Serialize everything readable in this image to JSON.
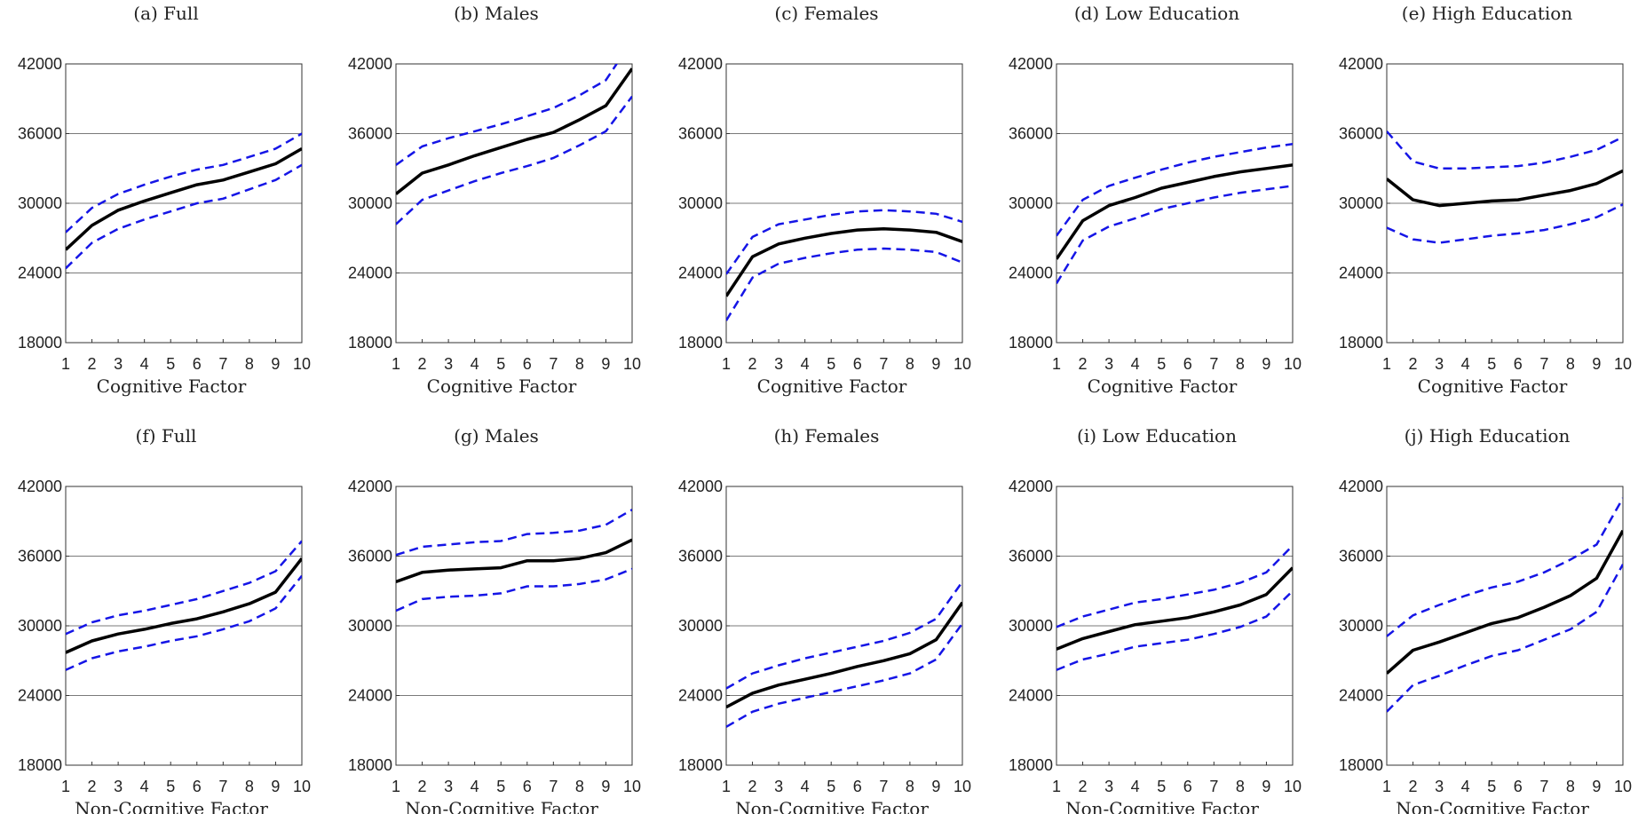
{
  "chart_data": [
    {
      "type": "line",
      "title": "(a) Full",
      "xlabel": "Cognitive Factor",
      "ylabel": "",
      "x": [
        1,
        2,
        3,
        4,
        5,
        6,
        7,
        8,
        9,
        10
      ],
      "xlim": [
        1,
        10
      ],
      "ylim": [
        18000,
        42000
      ],
      "yticks": [
        18000,
        24000,
        30000,
        36000,
        42000
      ],
      "grid": "horizontal",
      "series": [
        {
          "role": "estimate",
          "color": "#000000",
          "style": "solid",
          "values": [
            26000,
            28100,
            29400,
            30200,
            30900,
            31600,
            32000,
            32700,
            33400,
            34700
          ]
        },
        {
          "role": "upper",
          "color": "#1515e6",
          "style": "dashed",
          "values": [
            27500,
            29600,
            30800,
            31600,
            32300,
            32900,
            33300,
            34000,
            34700,
            36000
          ]
        },
        {
          "role": "lower",
          "color": "#1515e6",
          "style": "dashed",
          "values": [
            24400,
            26600,
            27800,
            28600,
            29300,
            30000,
            30400,
            31200,
            32000,
            33300
          ]
        }
      ]
    },
    {
      "type": "line",
      "title": "(b) Males",
      "xlabel": "Cognitive Factor",
      "ylabel": "",
      "x": [
        1,
        2,
        3,
        4,
        5,
        6,
        7,
        8,
        9,
        10
      ],
      "xlim": [
        1,
        10
      ],
      "ylim": [
        18000,
        42000
      ],
      "yticks": [
        18000,
        24000,
        30000,
        36000,
        42000
      ],
      "grid": "horizontal",
      "series": [
        {
          "role": "estimate",
          "color": "#000000",
          "style": "solid",
          "values": [
            30800,
            32600,
            33300,
            34100,
            34800,
            35500,
            36100,
            37200,
            38400,
            41600
          ]
        },
        {
          "role": "upper",
          "color": "#1515e6",
          "style": "dashed",
          "values": [
            33300,
            34900,
            35600,
            36200,
            36800,
            37500,
            38200,
            39300,
            40600,
            44000
          ]
        },
        {
          "role": "lower",
          "color": "#1515e6",
          "style": "dashed",
          "values": [
            28200,
            30300,
            31100,
            31900,
            32600,
            33200,
            33900,
            35000,
            36200,
            39200
          ]
        }
      ]
    },
    {
      "type": "line",
      "title": "(c) Females",
      "xlabel": "Cognitive Factor",
      "ylabel": "",
      "x": [
        1,
        2,
        3,
        4,
        5,
        6,
        7,
        8,
        9,
        10
      ],
      "xlim": [
        1,
        10
      ],
      "ylim": [
        18000,
        42000
      ],
      "yticks": [
        18000,
        24000,
        30000,
        36000,
        42000
      ],
      "grid": "horizontal",
      "series": [
        {
          "role": "estimate",
          "color": "#000000",
          "style": "solid",
          "values": [
            22000,
            25400,
            26500,
            27000,
            27400,
            27700,
            27800,
            27700,
            27500,
            26700
          ]
        },
        {
          "role": "upper",
          "color": "#1515e6",
          "style": "dashed",
          "values": [
            23900,
            27100,
            28200,
            28600,
            29000,
            29300,
            29400,
            29300,
            29100,
            28400
          ]
        },
        {
          "role": "lower",
          "color": "#1515e6",
          "style": "dashed",
          "values": [
            19900,
            23600,
            24800,
            25300,
            25700,
            26000,
            26100,
            26000,
            25800,
            24900
          ]
        }
      ]
    },
    {
      "type": "line",
      "title": "(d) Low Education",
      "xlabel": "Cognitive Factor",
      "ylabel": "",
      "x": [
        1,
        2,
        3,
        4,
        5,
        6,
        7,
        8,
        9,
        10
      ],
      "xlim": [
        1,
        10
      ],
      "ylim": [
        18000,
        42000
      ],
      "yticks": [
        18000,
        24000,
        30000,
        36000,
        42000
      ],
      "grid": "horizontal",
      "series": [
        {
          "role": "estimate",
          "color": "#000000",
          "style": "solid",
          "values": [
            25200,
            28500,
            29800,
            30500,
            31300,
            31800,
            32300,
            32700,
            33000,
            33300
          ]
        },
        {
          "role": "upper",
          "color": "#1515e6",
          "style": "dashed",
          "values": [
            27200,
            30300,
            31500,
            32200,
            32900,
            33500,
            34000,
            34400,
            34800,
            35100
          ]
        },
        {
          "role": "lower",
          "color": "#1515e6",
          "style": "dashed",
          "values": [
            23100,
            26800,
            28000,
            28700,
            29500,
            30000,
            30500,
            30900,
            31200,
            31500
          ]
        }
      ]
    },
    {
      "type": "line",
      "title": "(e) High Education",
      "xlabel": "Cognitive Factor",
      "ylabel": "",
      "x": [
        1,
        2,
        3,
        4,
        5,
        6,
        7,
        8,
        9,
        10
      ],
      "xlim": [
        1,
        10
      ],
      "ylim": [
        18000,
        42000
      ],
      "yticks": [
        18000,
        24000,
        30000,
        36000,
        42000
      ],
      "grid": "horizontal",
      "series": [
        {
          "role": "estimate",
          "color": "#000000",
          "style": "solid",
          "values": [
            32100,
            30300,
            29800,
            30000,
            30200,
            30300,
            30700,
            31100,
            31700,
            32800
          ]
        },
        {
          "role": "upper",
          "color": "#1515e6",
          "style": "dashed",
          "values": [
            36200,
            33600,
            33000,
            33000,
            33100,
            33200,
            33500,
            34000,
            34600,
            35700
          ]
        },
        {
          "role": "lower",
          "color": "#1515e6",
          "style": "dashed",
          "values": [
            27900,
            26900,
            26600,
            26900,
            27200,
            27400,
            27700,
            28200,
            28800,
            29900
          ]
        }
      ]
    },
    {
      "type": "line",
      "title": "(f) Full",
      "xlabel": "Non-Cognitive Factor",
      "ylabel": "",
      "x": [
        1,
        2,
        3,
        4,
        5,
        6,
        7,
        8,
        9,
        10
      ],
      "xlim": [
        1,
        10
      ],
      "ylim": [
        18000,
        42000
      ],
      "yticks": [
        18000,
        24000,
        30000,
        36000,
        42000
      ],
      "grid": "horizontal",
      "series": [
        {
          "role": "estimate",
          "color": "#000000",
          "style": "solid",
          "values": [
            27700,
            28700,
            29300,
            29700,
            30200,
            30600,
            31200,
            31900,
            32900,
            35800
          ]
        },
        {
          "role": "upper",
          "color": "#1515e6",
          "style": "dashed",
          "values": [
            29300,
            30300,
            30900,
            31300,
            31800,
            32300,
            33000,
            33700,
            34700,
            37300
          ]
        },
        {
          "role": "lower",
          "color": "#1515e6",
          "style": "dashed",
          "values": [
            26200,
            27200,
            27800,
            28200,
            28700,
            29100,
            29700,
            30400,
            31500,
            34300
          ]
        }
      ]
    },
    {
      "type": "line",
      "title": "(g) Males",
      "xlabel": "Non-Cognitive Factor",
      "ylabel": "",
      "x": [
        1,
        2,
        3,
        4,
        5,
        6,
        7,
        8,
        9,
        10
      ],
      "xlim": [
        1,
        10
      ],
      "ylim": [
        18000,
        42000
      ],
      "yticks": [
        18000,
        24000,
        30000,
        36000,
        42000
      ],
      "grid": "horizontal",
      "series": [
        {
          "role": "estimate",
          "color": "#000000",
          "style": "solid",
          "values": [
            33800,
            34600,
            34800,
            34900,
            35000,
            35600,
            35600,
            35800,
            36300,
            37400
          ]
        },
        {
          "role": "upper",
          "color": "#1515e6",
          "style": "dashed",
          "values": [
            36100,
            36800,
            37000,
            37200,
            37300,
            37900,
            38000,
            38200,
            38700,
            40000
          ]
        },
        {
          "role": "lower",
          "color": "#1515e6",
          "style": "dashed",
          "values": [
            31300,
            32300,
            32500,
            32600,
            32800,
            33400,
            33400,
            33600,
            34000,
            34900
          ]
        }
      ]
    },
    {
      "type": "line",
      "title": "(h) Females",
      "xlabel": "Non-Cognitive Factor",
      "ylabel": "",
      "x": [
        1,
        2,
        3,
        4,
        5,
        6,
        7,
        8,
        9,
        10
      ],
      "xlim": [
        1,
        10
      ],
      "ylim": [
        18000,
        42000
      ],
      "yticks": [
        18000,
        24000,
        30000,
        36000,
        42000
      ],
      "grid": "horizontal",
      "series": [
        {
          "role": "estimate",
          "color": "#000000",
          "style": "solid",
          "values": [
            23000,
            24200,
            24900,
            25400,
            25900,
            26500,
            27000,
            27600,
            28800,
            32000
          ]
        },
        {
          "role": "upper",
          "color": "#1515e6",
          "style": "dashed",
          "values": [
            24600,
            25900,
            26600,
            27200,
            27700,
            28200,
            28700,
            29400,
            30600,
            33800
          ]
        },
        {
          "role": "lower",
          "color": "#1515e6",
          "style": "dashed",
          "values": [
            21300,
            22600,
            23300,
            23800,
            24300,
            24800,
            25300,
            25900,
            27100,
            30200
          ]
        }
      ]
    },
    {
      "type": "line",
      "title": "(i) Low Education",
      "xlabel": "Non-Cognitive Factor",
      "ylabel": "",
      "x": [
        1,
        2,
        3,
        4,
        5,
        6,
        7,
        8,
        9,
        10
      ],
      "xlim": [
        1,
        10
      ],
      "ylim": [
        18000,
        42000
      ],
      "yticks": [
        18000,
        24000,
        30000,
        36000,
        42000
      ],
      "grid": "horizontal",
      "series": [
        {
          "role": "estimate",
          "color": "#000000",
          "style": "solid",
          "values": [
            28000,
            28900,
            29500,
            30100,
            30400,
            30700,
            31200,
            31800,
            32700,
            35000
          ]
        },
        {
          "role": "upper",
          "color": "#1515e6",
          "style": "dashed",
          "values": [
            29900,
            30800,
            31400,
            32000,
            32300,
            32700,
            33100,
            33700,
            34600,
            36900
          ]
        },
        {
          "role": "lower",
          "color": "#1515e6",
          "style": "dashed",
          "values": [
            26200,
            27100,
            27600,
            28200,
            28500,
            28800,
            29300,
            29900,
            30800,
            33000
          ]
        }
      ]
    },
    {
      "type": "line",
      "title": "(j) High Education",
      "xlabel": "Non-Cognitive Factor",
      "ylabel": "",
      "x": [
        1,
        2,
        3,
        4,
        5,
        6,
        7,
        8,
        9,
        10
      ],
      "xlim": [
        1,
        10
      ],
      "ylim": [
        18000,
        42000
      ],
      "yticks": [
        18000,
        24000,
        30000,
        36000,
        42000
      ],
      "grid": "horizontal",
      "series": [
        {
          "role": "estimate",
          "color": "#000000",
          "style": "solid",
          "values": [
            25900,
            27900,
            28600,
            29400,
            30200,
            30700,
            31600,
            32600,
            34100,
            38200
          ]
        },
        {
          "role": "upper",
          "color": "#1515e6",
          "style": "dashed",
          "values": [
            29100,
            30900,
            31800,
            32600,
            33300,
            33800,
            34600,
            35700,
            37000,
            41000
          ]
        },
        {
          "role": "lower",
          "color": "#1515e6",
          "style": "dashed",
          "values": [
            22600,
            24900,
            25700,
            26600,
            27400,
            27900,
            28800,
            29700,
            31200,
            35300
          ]
        }
      ]
    }
  ]
}
